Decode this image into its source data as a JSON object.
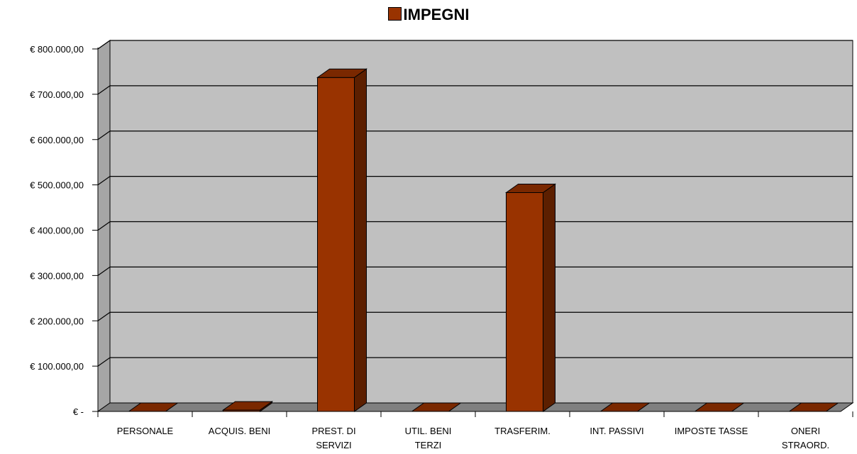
{
  "chart_data": {
    "type": "bar",
    "title": "",
    "legend": {
      "label": "IMPEGNI",
      "position": "top",
      "color": "#993300"
    },
    "categories": [
      [
        "PERSONALE"
      ],
      [
        "ACQUIS. BENI"
      ],
      [
        "PREST. DI",
        "SERVIZI"
      ],
      [
        "UTIL. BENI",
        "TERZI"
      ],
      [
        "TRASFERIM."
      ],
      [
        "INT. PASSIVI"
      ],
      [
        "IMPOSTE TASSE"
      ],
      [
        "ONERI",
        "STRAORD."
      ]
    ],
    "series": [
      {
        "name": "IMPEGNI",
        "values": [
          0,
          3000,
          737000,
          0,
          483000,
          0,
          0,
          0
        ]
      }
    ],
    "ylim": [
      0,
      800000
    ],
    "yticks": [
      0,
      100000,
      200000,
      300000,
      400000,
      500000,
      600000,
      700000,
      800000
    ],
    "ytick_labels": [
      "€ -",
      "€ 100.000,00",
      "€ 200.000,00",
      "€ 300.000,00",
      "€ 400.000,00",
      "€ 500.000,00",
      "€ 600.000,00",
      "€ 700.000,00",
      "€ 800.000,00"
    ],
    "xlabel": "",
    "ylabel": "",
    "grid": true,
    "colors": {
      "bar_front": "#993300",
      "bar_top": "#7a2800",
      "bar_side": "#5c1f00",
      "wall": "#c0c0c0",
      "side_wall": "#a6a6a6",
      "floor": "#808080"
    }
  }
}
